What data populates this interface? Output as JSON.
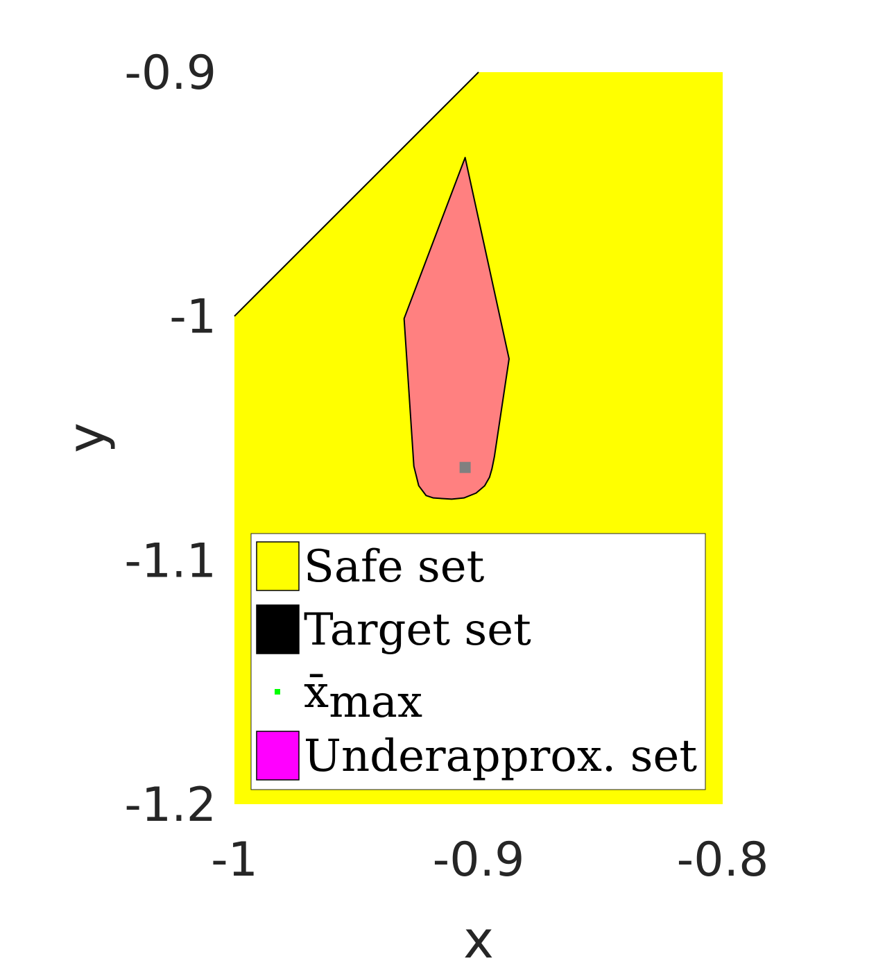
{
  "chart_data": {
    "type": "area",
    "xlabel": "x",
    "ylabel": "y",
    "xlim": [
      -1,
      -0.8
    ],
    "ylim": [
      -1.2,
      -0.9
    ],
    "xticks": [
      -1,
      -0.9,
      -0.8
    ],
    "xtick_labels": [
      "-1",
      "-0.9",
      "-0.8"
    ],
    "yticks": [
      -1.2,
      -1.1,
      -1,
      -0.9
    ],
    "ytick_labels": [
      "-1.2",
      "-1.1",
      "-1",
      "-0.9"
    ],
    "grid": false,
    "legend_position": "bottom-center",
    "series": [
      {
        "name": "Safe set",
        "kind": "polygon",
        "fill": "#ffff00",
        "x": [
          -1,
          -0.9,
          -0.8,
          -0.8,
          -1
        ],
        "y": [
          -1,
          -0.9,
          -0.9,
          -1.2,
          -1.2
        ]
      },
      {
        "name": "Target set",
        "kind": "legend-only",
        "fill": "#000000"
      },
      {
        "name": "x̄max",
        "kind": "point",
        "fill": "#00ff00",
        "x": [],
        "y": []
      },
      {
        "name": "Underapprox. set",
        "kind": "legend-only",
        "fill": "#ff00ff"
      }
    ],
    "region": {
      "fill": "#ff8080",
      "x": [
        -0.9055,
        -0.8875,
        -0.8935,
        -0.8945,
        -0.8955,
        -0.8975,
        -0.901,
        -0.906,
        -0.911,
        -0.9185,
        -0.9215,
        -0.9245,
        -0.9265,
        -0.9305
      ],
      "y": [
        -0.935,
        -1.0175,
        -1.0575,
        -1.0625,
        -1.066,
        -1.0695,
        -1.0725,
        -1.0745,
        -1.075,
        -1.0745,
        -1.0735,
        -1.0695,
        -1.0615,
        -1.001
      ]
    },
    "marker": {
      "fill": "#808080",
      "x": -0.9055,
      "y": -1.062
    },
    "legend": [
      {
        "label": "Safe set",
        "color": "#ffff00",
        "kind": "patch"
      },
      {
        "label": "Target set",
        "color": "#000000",
        "kind": "patch"
      },
      {
        "label": "x̄",
        "subscript": "max",
        "color": "#00ff00",
        "kind": "marker"
      },
      {
        "label": "Underapprox. set",
        "color": "#ff00ff",
        "kind": "patch"
      }
    ]
  }
}
